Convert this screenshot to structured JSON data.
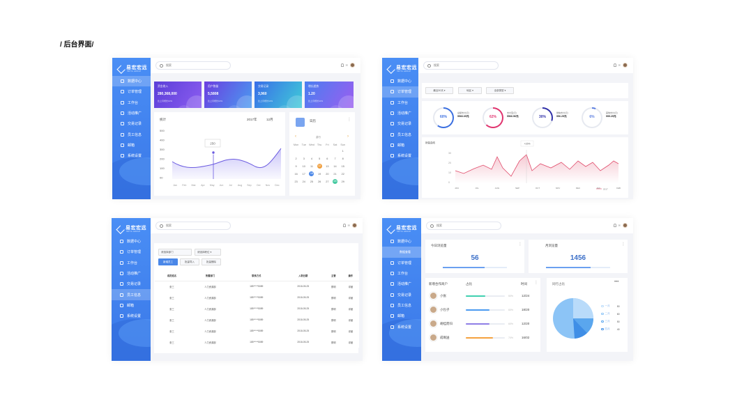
{
  "page_title": "/ 后台界面/",
  "logo": {
    "name": "易宏宏远",
    "sub": "HEYIA GROUP"
  },
  "menu": [
    "数据中心",
    "订单管理",
    "工作台",
    "活动推广",
    "交易记录",
    "员工信息",
    "邮箱",
    "系统设置"
  ],
  "search_placeholder": "搜索",
  "panel1": {
    "stats": [
      {
        "title": "资金收入",
        "value": "280,368,000",
        "sub": "比上月增长10%"
      },
      {
        "title": "用户数量",
        "value": "5,5808",
        "sub": "比上月增长10%"
      },
      {
        "title": "交易记录",
        "value": "3,960",
        "sub": "比上月增长10%"
      },
      {
        "title": "增长趋势",
        "value": "1.20",
        "sub": "比上月增长10%"
      }
    ],
    "chart": {
      "title": "统计",
      "year": "2017年",
      "month": "12月",
      "tooltip": "250",
      "y_ticks": [
        "500",
        "400",
        "300",
        "200",
        "100",
        "00"
      ],
      "x_ticks": [
        "Jan",
        "Feb",
        "Mar",
        "Apr",
        "May",
        "Jun",
        "Jul",
        "Aug",
        "Sep",
        "Oct",
        "Nov",
        "Dec"
      ]
    },
    "calendar": {
      "title": "日历",
      "month_label": "游行",
      "weekdays": [
        "Mon",
        "Tue",
        "Wed",
        "Thu",
        "Fri",
        "Sat",
        "Sun"
      ],
      "rows": [
        [
          "",
          "",
          "",
          "",
          "",
          "",
          "1"
        ],
        [
          "2",
          "3",
          "4",
          "5",
          "6",
          "7",
          "8"
        ],
        [
          "9",
          "10",
          "11",
          "12",
          "13",
          "14",
          "15"
        ],
        [
          "16",
          "17",
          "18",
          "19",
          "20",
          "21",
          "22"
        ],
        [
          "23",
          "24",
          "25",
          "26",
          "27",
          "28",
          "29"
        ]
      ],
      "highlight_orange": "12",
      "highlight_blue": "18",
      "highlight_green": "28"
    }
  },
  "panel2": {
    "filters": [
      "最近30天",
      "地区",
      "全部类型"
    ],
    "rings": [
      {
        "pct": "60%",
        "label1": "总额支付(元)",
        "value": "5566.65元",
        "color": "#3b6fe0"
      },
      {
        "pct": "62%",
        "label1": "支付宝(元)",
        "value": "5566.56元",
        "color": "#e0336e"
      },
      {
        "pct": "30%",
        "label1": "微信支付(元)",
        "value": "956.25元",
        "color": "#3030a8"
      },
      {
        "pct": "6%",
        "label1": "其他支付(元)",
        "value": "999.25元",
        "color": "#5a7de0"
      }
    ],
    "line_title": "销量曲线",
    "tooltip": "+15%",
    "legend": "2017",
    "x_ticks": [
      "JAN",
      "JUL",
      "AUG",
      "SEP",
      "OCT",
      "NOV",
      "DEC",
      "JAN",
      "FEB"
    ],
    "y_ticks": [
      "30",
      "20",
      "10",
      "0"
    ]
  },
  "panel3": {
    "inputs": [
      "请选择部门",
      "请选择职位"
    ],
    "buttons": [
      "新增员工",
      "批量导入",
      "批量删除"
    ],
    "headers": [
      "成员姓名",
      "所属部门",
      "联系方式",
      "入职日期",
      "主管",
      "操作"
    ],
    "row": [
      "张三",
      "人力资源部",
      "185*****5089",
      "2018-05-25",
      "蔡明",
      "详细"
    ],
    "row_count": 6
  },
  "panel4": {
    "submenu": "数据查看",
    "today": {
      "label": "今日浏览量",
      "value": "56"
    },
    "month": {
      "label": "月浏览量",
      "value": "1456"
    },
    "users_title": "新增合作商户",
    "col_ratio": "占比",
    "col_time": "时间",
    "users": [
      {
        "name": "小张",
        "pct": "50%",
        "date": "12/24",
        "fill": 0.5,
        "color": "#3fd0b0"
      },
      {
        "name": "小包子",
        "pct": "60%",
        "date": "18/20",
        "fill": 0.6,
        "color": "#4a9af0"
      },
      {
        "name": "胡桂而归",
        "pct": "60%",
        "date": "12/20",
        "fill": 0.6,
        "color": "#8e7ee6"
      },
      {
        "name": "成啊送",
        "pct": "70%",
        "date": "16/02",
        "fill": 0.7,
        "color": "#f5a13e"
      }
    ],
    "pie_title": "同行占比",
    "pie_legend": [
      {
        "label": "一月",
        "value": "50"
      },
      {
        "label": "二月",
        "value": "60"
      },
      {
        "label": "三月",
        "value": "50"
      },
      {
        "label": "四月",
        "value": "40"
      }
    ]
  }
}
